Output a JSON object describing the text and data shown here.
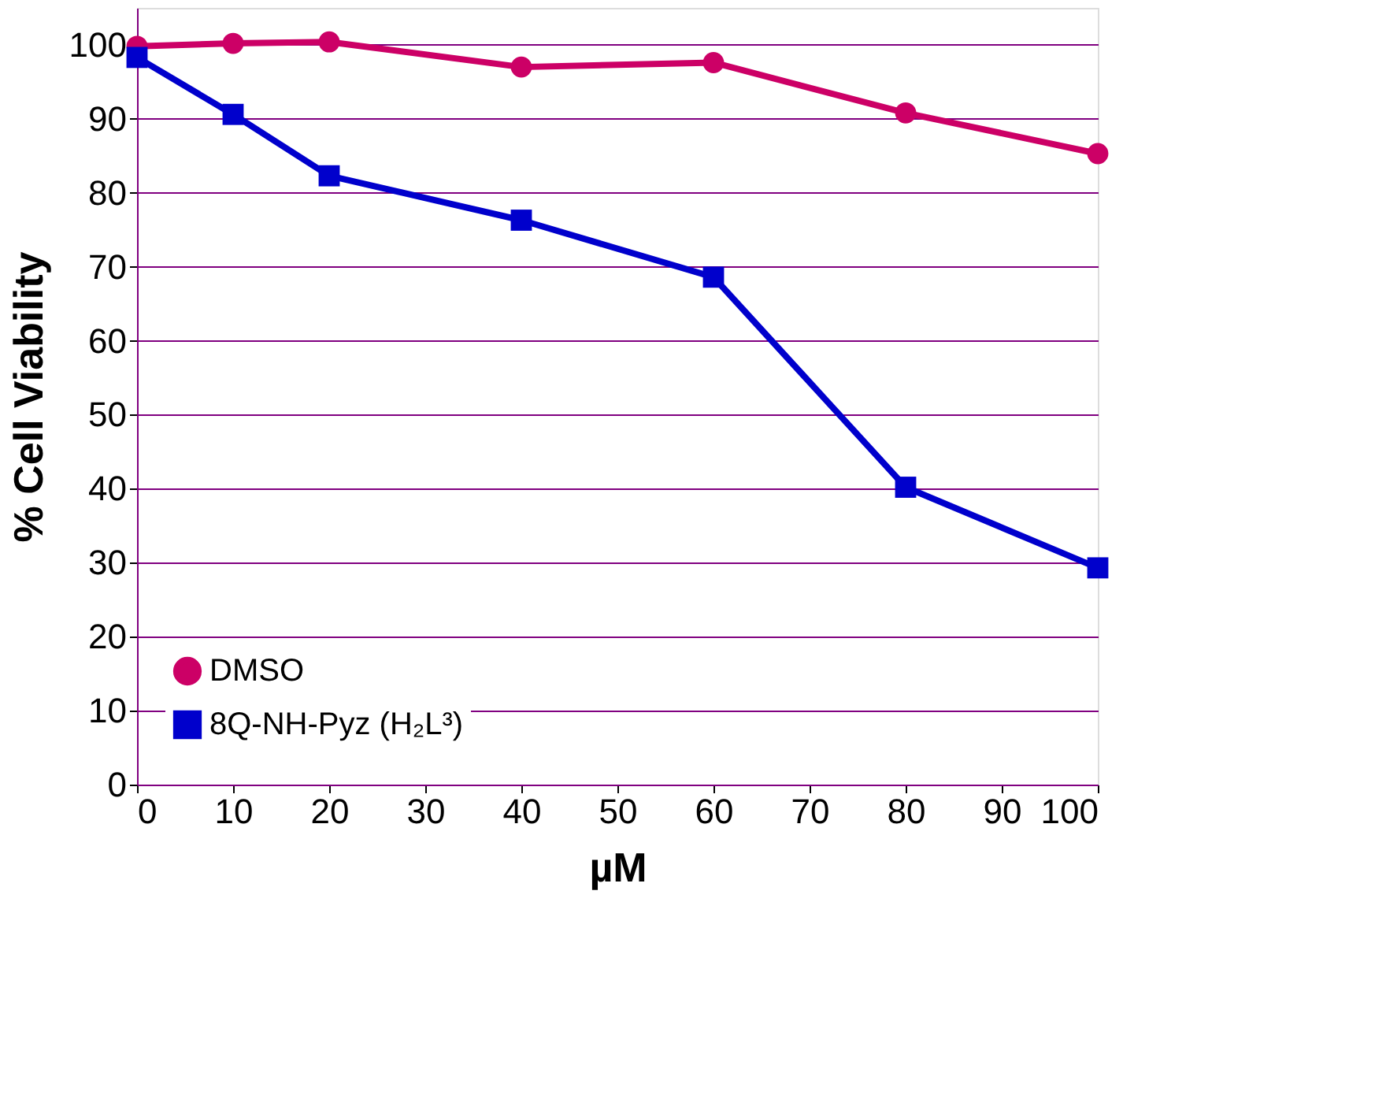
{
  "chart_data": {
    "type": "line",
    "xlabel": "µM",
    "ylabel": "% Cell Viability",
    "x": [
      0,
      10,
      20,
      40,
      60,
      80,
      100
    ],
    "series": [
      {
        "name": "DMSO",
        "color": "#cc0066",
        "marker": "circle",
        "values": [
          99.8,
          100.2,
          100.4,
          97.0,
          97.6,
          90.8,
          85.3
        ]
      },
      {
        "name": "8Q-NH-Pyz (H₂L³)",
        "color": "#0000cc",
        "marker": "square",
        "values": [
          98.3,
          90.6,
          82.3,
          76.3,
          68.6,
          40.2,
          29.3
        ]
      }
    ],
    "xlim": [
      0,
      100
    ],
    "ylim": [
      0,
      105
    ],
    "xticks": [
      0,
      10,
      20,
      30,
      40,
      50,
      60,
      70,
      80,
      90,
      100
    ],
    "yticks": [
      0,
      10,
      20,
      30,
      40,
      50,
      60,
      70,
      80,
      90,
      100
    ],
    "grid": "y",
    "legend": "bottom left",
    "line_style": "solid"
  }
}
